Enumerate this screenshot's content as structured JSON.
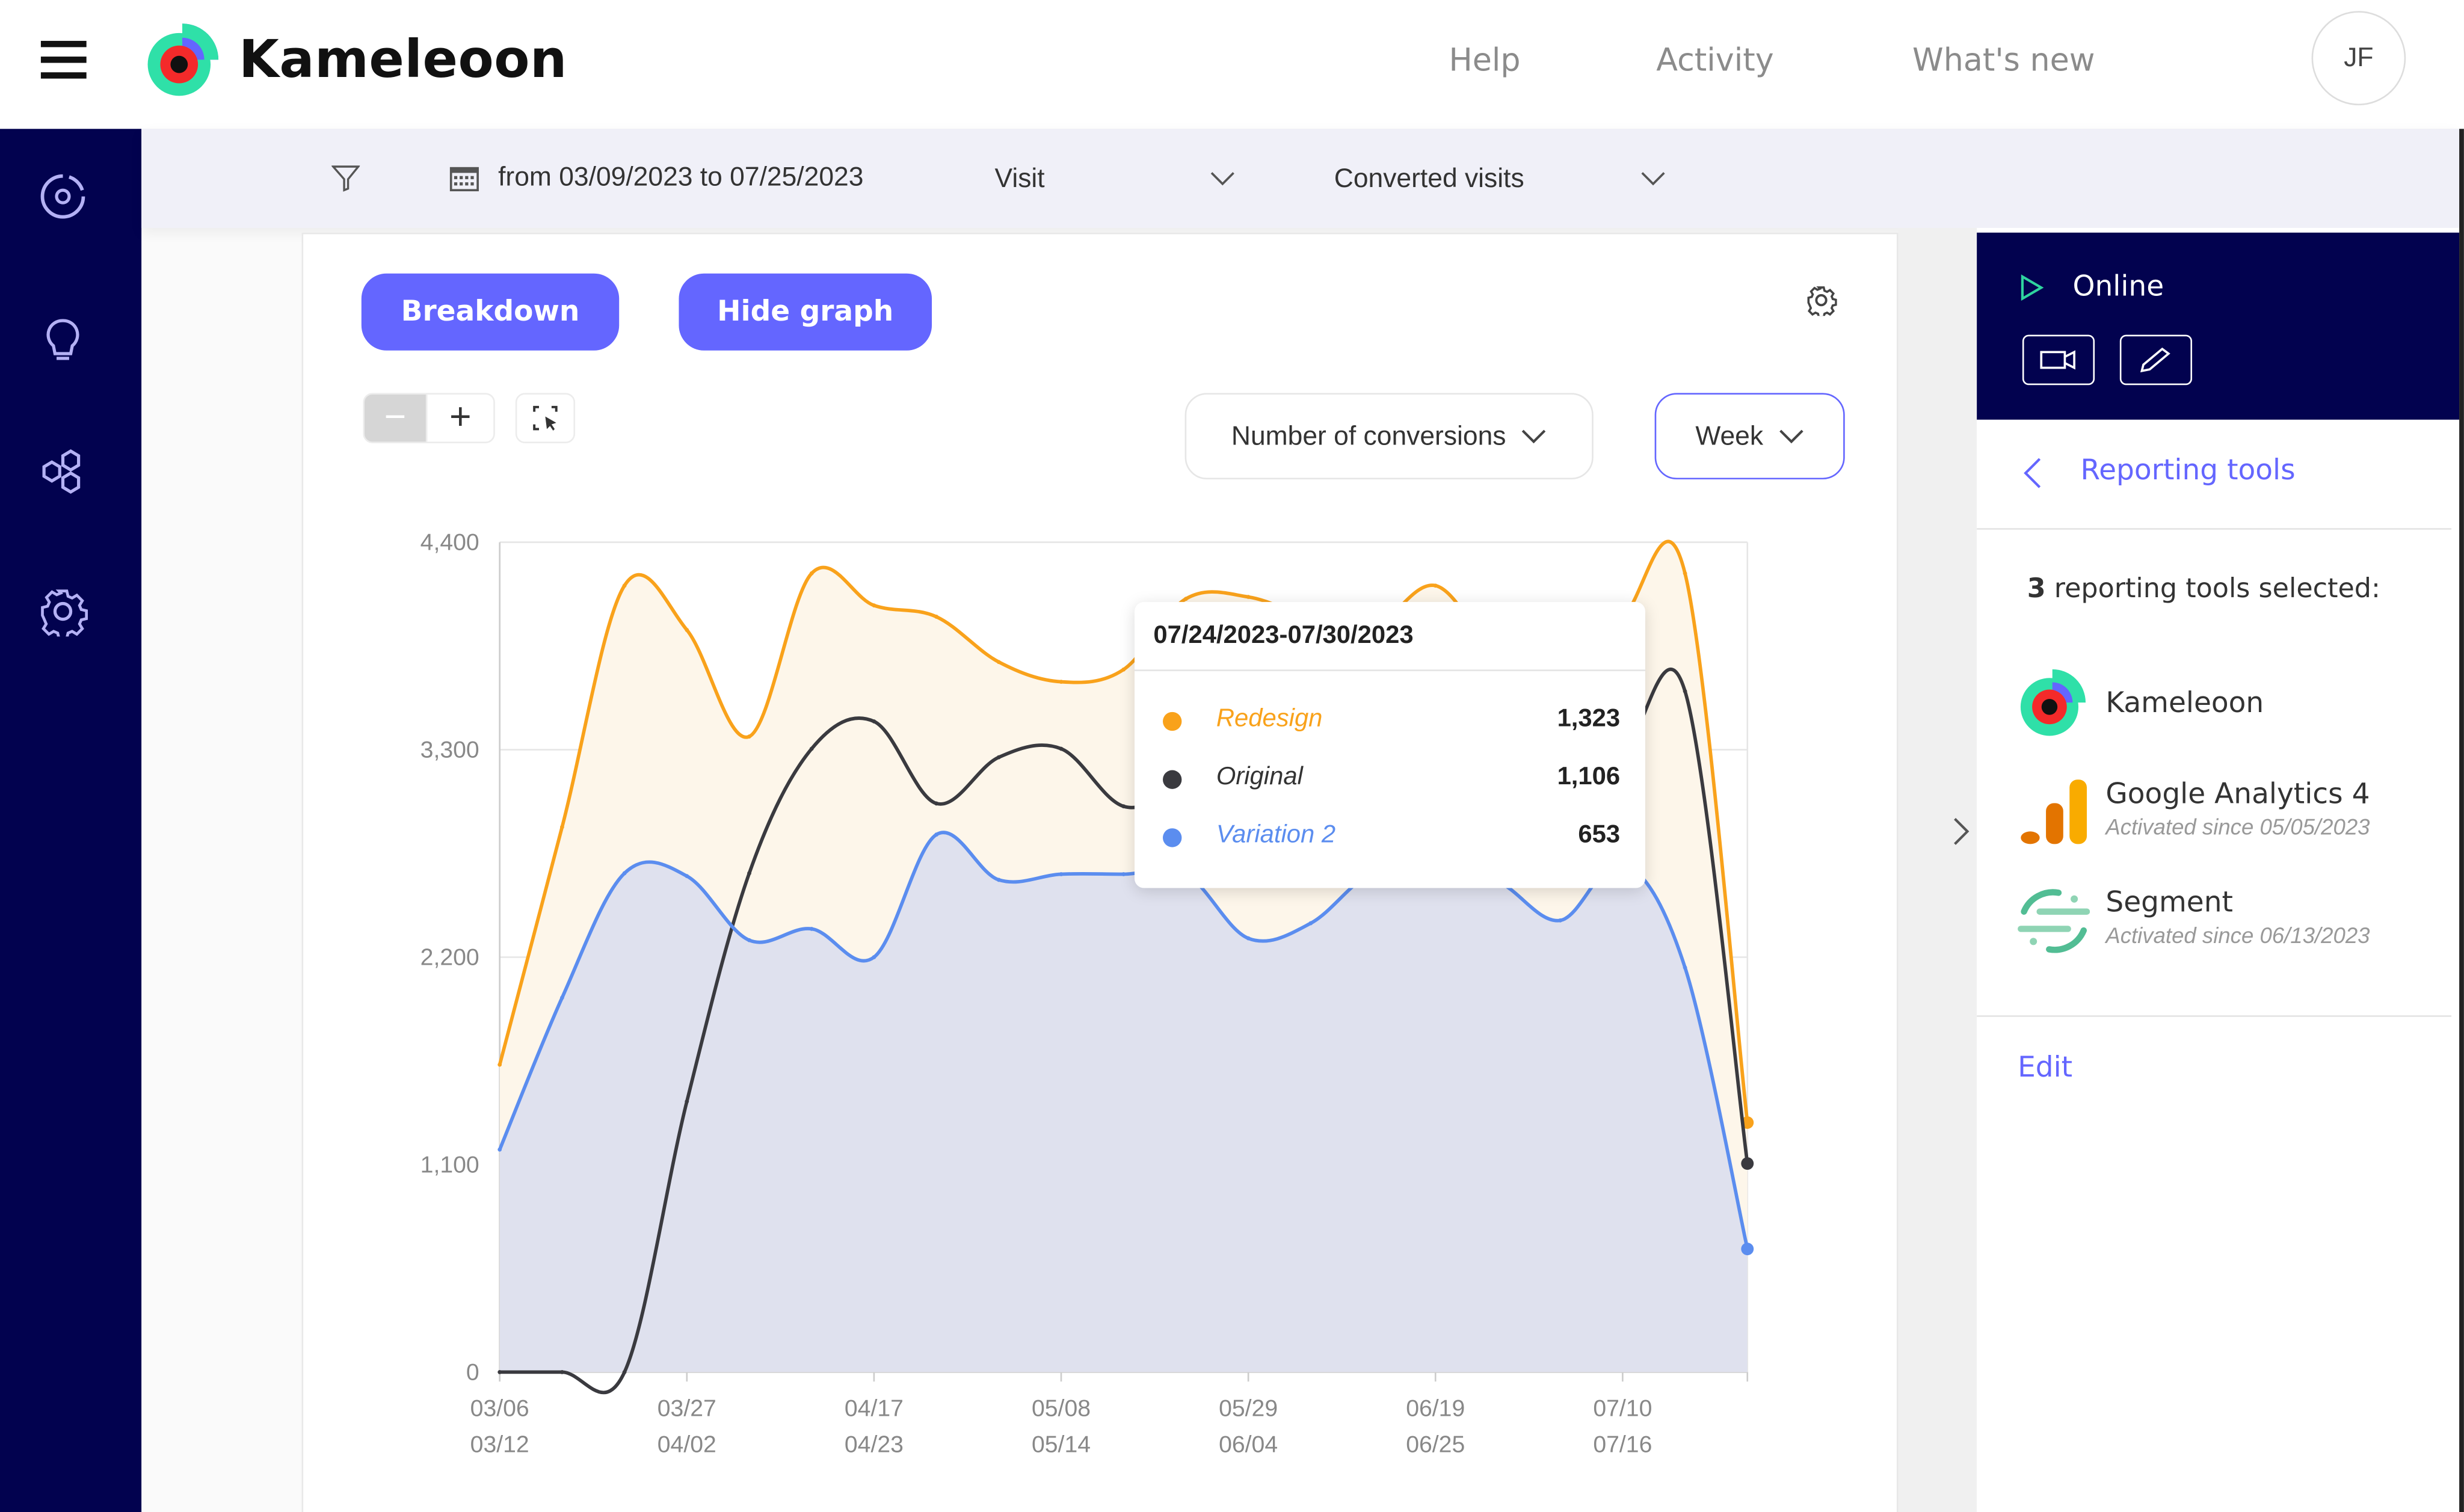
{
  "header": {
    "brand": "Kameleoon",
    "nav": [
      "Help",
      "Activity",
      "What's new"
    ],
    "avatar_initials": "JF"
  },
  "toolbar": {
    "date_range": "from 03/09/2023 to 07/25/2023",
    "unit_select": "Visit",
    "metric_select": "Converted visits"
  },
  "controls": {
    "breakdown": "Breakdown",
    "hide_graph": "Hide graph",
    "zoom_out": "−",
    "zoom_in": "+",
    "metric_dropdown": "Number of conversions",
    "period_dropdown": "Week"
  },
  "tooltip": {
    "title": "07/24/2023-07/30/2023",
    "rows": [
      {
        "name": "Redesign",
        "value": "1,323",
        "color": "#f9a21b"
      },
      {
        "name": "Original",
        "value": "1,106",
        "color": "#3a3a3f"
      },
      {
        "name": "Variation 2",
        "value": "653",
        "color": "#5b8def"
      }
    ]
  },
  "chart_data": {
    "type": "area",
    "ylim": [
      0,
      4400
    ],
    "yticks": [
      0,
      1100,
      2200,
      3300,
      4400
    ],
    "ytick_labels": [
      "0",
      "1,100",
      "2,200",
      "3,300",
      "4,400"
    ],
    "x": [
      "03/06-03/12",
      "03/13-03/19",
      "03/20-03/26",
      "03/27-04/02",
      "04/03-04/09",
      "04/10-04/16",
      "04/17-04/23",
      "04/24-04/30",
      "05/01-05/07",
      "05/08-05/14",
      "05/15-05/21",
      "05/22-05/28",
      "05/29-06/04",
      "06/05-06/11",
      "06/12-06/18",
      "06/19-06/25",
      "06/26-07/02",
      "07/03-07/09",
      "07/10-07/16",
      "07/17-07/23",
      "07/24-07/30"
    ],
    "xtick_labels": [
      {
        "top": "03/06",
        "bottom": "03/12"
      },
      {
        "top": "03/27",
        "bottom": "04/02"
      },
      {
        "top": "04/17",
        "bottom": "04/23"
      },
      {
        "top": "05/08",
        "bottom": "05/14"
      },
      {
        "top": "05/29",
        "bottom": "06/04"
      },
      {
        "top": "06/19",
        "bottom": "06/25"
      },
      {
        "top": "07/10",
        "bottom": "07/16"
      }
    ],
    "grid": true,
    "series": [
      {
        "name": "Redesign",
        "color": "#f9a21b",
        "fill": "#fdf6ea",
        "values": [
          1630,
          2890,
          4170,
          3935,
          3370,
          4235,
          4065,
          4005,
          3765,
          3660,
          3725,
          4100,
          4110,
          4000,
          3950,
          4170,
          3800,
          3700,
          4000,
          4235,
          1323
        ]
      },
      {
        "name": "Original",
        "color": "#3a3a3f",
        "fill": null,
        "values": [
          0,
          0,
          0,
          1435,
          2645,
          3305,
          3450,
          3015,
          3260,
          3305,
          3000,
          3100,
          3150,
          3200,
          3150,
          3200,
          3150,
          3100,
          3275,
          3610,
          1106
        ]
      },
      {
        "name": "Variation 2",
        "color": "#5b8def",
        "fill": "#dfe1ee",
        "values": [
          1180,
          1985,
          2645,
          2630,
          2290,
          2350,
          2200,
          2850,
          2610,
          2640,
          2640,
          2640,
          2300,
          2380,
          2650,
          2650,
          2600,
          2395,
          2700,
          2145,
          653
        ]
      }
    ]
  },
  "panel": {
    "status": "Online",
    "back_label": "Reporting tools",
    "selected_count": "3",
    "selected_text": " reporting tools selected:",
    "tools": [
      {
        "name": "Kameleoon",
        "sub": ""
      },
      {
        "name": "Google Analytics 4",
        "sub": "Activated since 05/05/2023"
      },
      {
        "name": "Segment",
        "sub": "Activated since 06/13/2023"
      }
    ],
    "edit": "Edit"
  }
}
